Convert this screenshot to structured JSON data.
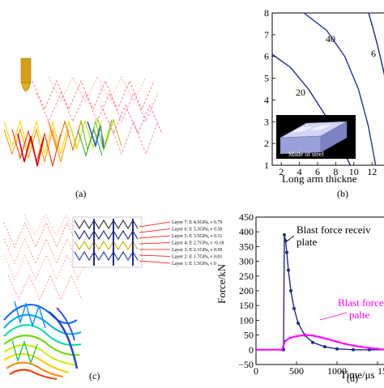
{
  "panels": {
    "a": {
      "label": "(a)"
    },
    "b": {
      "label": "(b)",
      "xlabel": "Long arm thickne",
      "xticks": [
        "2",
        "4",
        "6",
        "8",
        "10",
        "12"
      ],
      "yticks": [
        "1",
        "2",
        "3",
        "4",
        "5",
        "6",
        "7",
        "8"
      ],
      "curve_labels": [
        "40",
        "20"
      ],
      "inset_label": "Made of steel"
    },
    "c": {
      "label": "(c)",
      "layers": [
        "Layer 7: E   4.5GPa, ν   0.79",
        "Layer 6: E   5.3GPa, ν   0.50",
        "Layer 5: E   3.5GPa, ν   0.31",
        "Layer 4: E   2.7GPa, ν   -0.18",
        "Layer 3: E   2.1GPa, ν   0.50",
        "Layer 2: E   1.7GPa, ν   0.01",
        "Layer 1: E   1.5GPa, ν   0"
      ]
    },
    "d": {
      "label": "(d)",
      "ylabel": "Force/kN",
      "xlabel": "Time/μs",
      "xticks": [
        "0",
        "500",
        "1000",
        "150"
      ],
      "yticks": [
        "−50",
        "0",
        "50",
        "100",
        "150",
        "200",
        "250",
        "300",
        "350",
        "400",
        "450"
      ],
      "legend_received_l1": "Blast force receiv",
      "legend_received_l2": "plate",
      "legend_force_l1": "Blast force",
      "legend_force_l2": "palte",
      "colors": {
        "received": "#1f2a8a",
        "force": "#ff00ff"
      }
    }
  },
  "chart_data": [
    {
      "type": "line",
      "panel": "b",
      "xlabel": "Long arm thickne",
      "xlim": [
        1,
        13.5
      ],
      "ylim": [
        1,
        8
      ],
      "series": [
        {
          "name": "20",
          "x": [
            1,
            3,
            5,
            7,
            8.5,
            9.6
          ],
          "y": [
            6.1,
            5.5,
            4.5,
            3.2,
            2.0,
            1.0
          ]
        },
        {
          "name": "40",
          "x": [
            4.5,
            7,
            9,
            10.5,
            11.6,
            12.4
          ],
          "y": [
            8.0,
            7.2,
            6.0,
            4.5,
            2.8,
            1.0
          ]
        }
      ]
    },
    {
      "type": "line",
      "panel": "d",
      "xlabel": "Time/μs",
      "ylabel": "Force/kN",
      "xlim": [
        0,
        1600
      ],
      "ylim": [
        -50,
        450
      ],
      "series": [
        {
          "name": "Blast force receiv plate",
          "x": [
            0,
            320,
            340,
            350,
            365,
            380,
            400,
            430,
            470,
            520,
            600,
            700,
            850,
            1000,
            1200,
            1400,
            1600
          ],
          "y": [
            0,
            0,
            0,
            390,
            370,
            330,
            270,
            200,
            140,
            90,
            50,
            25,
            10,
            3,
            0,
            0,
            0
          ]
        },
        {
          "name": "Blast force palte",
          "x": [
            0,
            320,
            360,
            420,
            500,
            600,
            700,
            800,
            900,
            1000,
            1100,
            1200,
            1300,
            1400,
            1500,
            1600
          ],
          "y": [
            0,
            0,
            30,
            40,
            46,
            50,
            48,
            42,
            35,
            27,
            20,
            14,
            10,
            6,
            3,
            0
          ]
        }
      ]
    }
  ]
}
